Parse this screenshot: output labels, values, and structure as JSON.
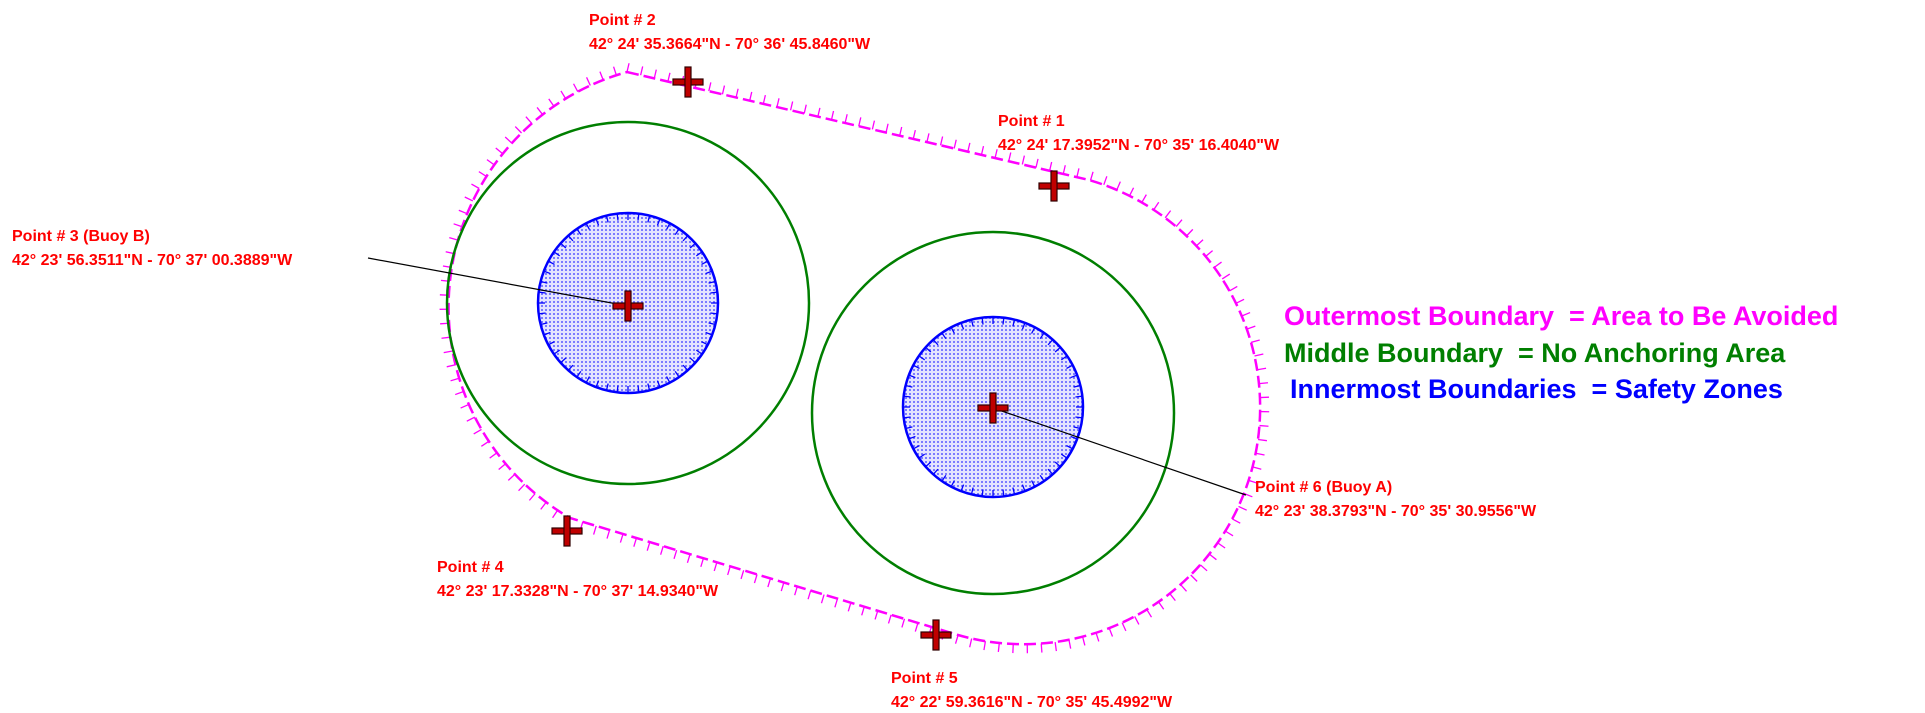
{
  "colors": {
    "outer": "#ff00ff",
    "middle": "#007f00",
    "inner": "#0000ff",
    "inner_fill": "#b8b8ff",
    "label": "#ff0000",
    "marker_fill": "#b00000",
    "leader": "#000000"
  },
  "points": [
    {
      "name": "Point # 1",
      "coord": "42° 24' 17.3952\"N - 70° 35' 16.4040\"W"
    },
    {
      "name": "Point # 2",
      "coord": "42° 24' 35.3664\"N - 70° 36' 45.8460\"W"
    },
    {
      "name": "Point # 3 (Buoy B)",
      "coord": "42° 23' 56.3511\"N - 70° 37' 00.3889\"W"
    },
    {
      "name": "Point # 4",
      "coord": "42° 23' 17.3328\"N - 70° 37' 14.9340\"W"
    },
    {
      "name": "Point # 5",
      "coord": "42° 22' 59.3616\"N - 70° 35' 45.4992\"W"
    },
    {
      "name": "Point # 6 (Buoy A)",
      "coord": "42° 23' 38.3793\"N - 70° 35' 30.9556\"W"
    }
  ],
  "legend": [
    {
      "text": "Outermost Boundary  = Area to Be Avoided",
      "color": "#ff00ff"
    },
    {
      "text": "Middle Boundary  = No Anchoring Area",
      "color": "#007f00"
    },
    {
      "text": "Innermost Boundaries  = Safety Zones",
      "color": "#0000ff"
    }
  ]
}
